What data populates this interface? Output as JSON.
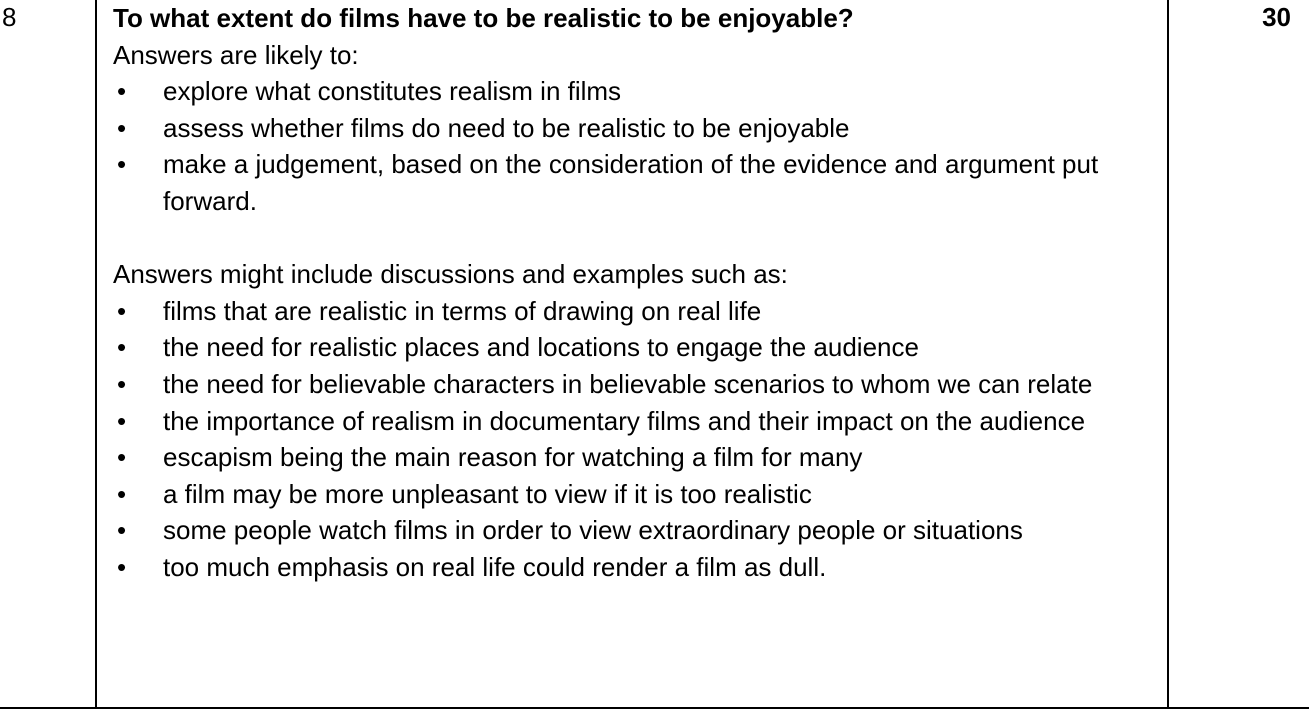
{
  "row": {
    "number": "8",
    "marks": "30",
    "question": "To what extent do films have to be realistic to be enjoyable?",
    "section1": {
      "intro": "Answers are likely to:",
      "items": [
        "explore what constitutes realism in films",
        "assess whether films do need to be realistic to be enjoyable",
        "make a judgement, based on the consideration of the evidence and argument put forward."
      ]
    },
    "section2": {
      "intro": "Answers might include discussions and examples such as:",
      "items": [
        "films that are realistic in terms of drawing on real life",
        "the need for realistic places and locations to engage the audience",
        "the need for believable characters in believable scenarios to whom we can relate",
        "the importance of realism in documentary films and their impact on the audience",
        "escapism being the main reason for watching a film for many",
        "a film may be more unpleasant to view if it is too realistic",
        "some people watch films in order to view extraordinary people or situations",
        "too much emphasis on real life could render a film as dull."
      ]
    },
    "bullet_glyph": "•"
  }
}
